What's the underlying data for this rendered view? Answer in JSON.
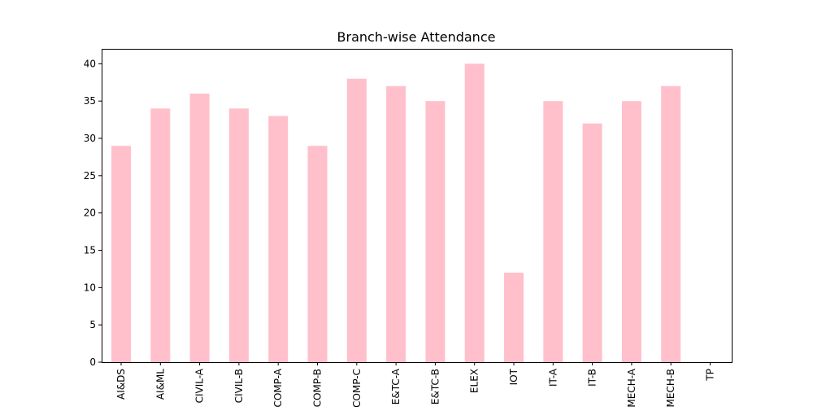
{
  "chart_data": {
    "type": "bar",
    "title": "Branch-wise Attendance",
    "xlabel": "",
    "ylabel": "",
    "categories": [
      "AI&DS",
      "AI&ML",
      "CIVIL-A",
      "CIVIL-B",
      "COMP-A",
      "COMP-B",
      "COMP-C",
      "E&TC-A",
      "E&TC-B",
      "ELEX",
      "IOT",
      "IT-A",
      "IT-B",
      "MECH-A",
      "MECH-B",
      "TP"
    ],
    "values": [
      29,
      34,
      36,
      34,
      33,
      29,
      38,
      37,
      35,
      40,
      12,
      35,
      32,
      35,
      37,
      0
    ],
    "ylim": [
      0,
      42
    ],
    "yticks": [
      0,
      5,
      10,
      15,
      20,
      25,
      30,
      35,
      40
    ],
    "grid": false,
    "bar_color": "#ffc0cb"
  }
}
